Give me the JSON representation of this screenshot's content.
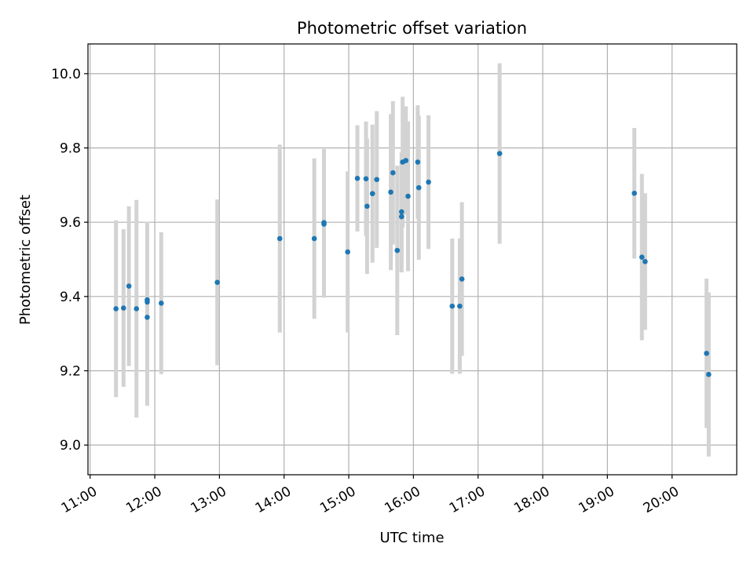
{
  "chart_data": {
    "type": "scatter",
    "title": "Photometric offset variation",
    "xlabel": "UTC time",
    "ylabel": "Photometric offset",
    "x_ticks": [
      "11:00",
      "12:00",
      "13:00",
      "14:00",
      "15:00",
      "16:00",
      "17:00",
      "18:00",
      "19:00",
      "20:00"
    ],
    "y_ticks": [
      "9.0",
      "9.2",
      "9.4",
      "9.6",
      "9.8",
      "10.0"
    ],
    "xlim": [
      "10:58",
      "21:00"
    ],
    "ylim": [
      8.92,
      10.08
    ],
    "grid": true,
    "colors": {
      "points": "#1f77b4",
      "errorbars": "#d3d3d3",
      "grid": "#b0b0b0"
    },
    "points": [
      {
        "time": "11:24",
        "y": 9.367,
        "err": 0.238
      },
      {
        "time": "11:31",
        "y": 9.369,
        "err": 0.212
      },
      {
        "time": "11:36",
        "y": 9.428,
        "err": 0.215
      },
      {
        "time": "11:43",
        "y": 9.367,
        "err": 0.293
      },
      {
        "time": "11:53",
        "y": 9.391,
        "err": 0.21
      },
      {
        "time": "11:53",
        "y": 9.385,
        "err": 0.21
      },
      {
        "time": "11:53",
        "y": 9.344,
        "err": 0.238
      },
      {
        "time": "12:06",
        "y": 9.382,
        "err": 0.191
      },
      {
        "time": "12:58",
        "y": 9.438,
        "err": 0.223
      },
      {
        "time": "13:56",
        "y": 9.556,
        "err": 0.253
      },
      {
        "time": "14:28",
        "y": 9.556,
        "err": 0.216
      },
      {
        "time": "14:37",
        "y": 9.595,
        "err": 0.198
      },
      {
        "time": "14:37",
        "y": 9.599,
        "err": 0.198
      },
      {
        "time": "14:59",
        "y": 9.52,
        "err": 0.217
      },
      {
        "time": "15:08",
        "y": 9.718,
        "err": 0.143
      },
      {
        "time": "15:16",
        "y": 9.717,
        "err": 0.154
      },
      {
        "time": "15:17",
        "y": 9.643,
        "err": 0.182
      },
      {
        "time": "15:22",
        "y": 9.677,
        "err": 0.186
      },
      {
        "time": "15:26",
        "y": 9.715,
        "err": 0.184
      },
      {
        "time": "15:39",
        "y": 9.681,
        "err": 0.21
      },
      {
        "time": "15:41",
        "y": 9.733,
        "err": 0.193
      },
      {
        "time": "15:45",
        "y": 9.524,
        "err": 0.228
      },
      {
        "time": "15:49",
        "y": 9.615,
        "err": 0.15
      },
      {
        "time": "15:49",
        "y": 9.628,
        "err": 0.16
      },
      {
        "time": "15:50",
        "y": 9.762,
        "err": 0.176
      },
      {
        "time": "15:53",
        "y": 9.766,
        "err": 0.146
      },
      {
        "time": "15:55",
        "y": 9.67,
        "err": 0.202
      },
      {
        "time": "16:04",
        "y": 9.762,
        "err": 0.153
      },
      {
        "time": "16:05",
        "y": 9.693,
        "err": 0.194
      },
      {
        "time": "16:14",
        "y": 9.708,
        "err": 0.18
      },
      {
        "time": "16:36",
        "y": 9.374,
        "err": 0.182
      },
      {
        "time": "16:43",
        "y": 9.374,
        "err": 0.182
      },
      {
        "time": "16:45",
        "y": 9.447,
        "err": 0.207
      },
      {
        "time": "17:20",
        "y": 9.785,
        "err": 0.243
      },
      {
        "time": "19:25",
        "y": 9.678,
        "err": 0.176
      },
      {
        "time": "19:32",
        "y": 9.506,
        "err": 0.224
      },
      {
        "time": "19:35",
        "y": 9.494,
        "err": 0.184
      },
      {
        "time": "20:32",
        "y": 9.247,
        "err": 0.201
      },
      {
        "time": "20:34",
        "y": 9.19,
        "err": 0.221
      }
    ]
  }
}
